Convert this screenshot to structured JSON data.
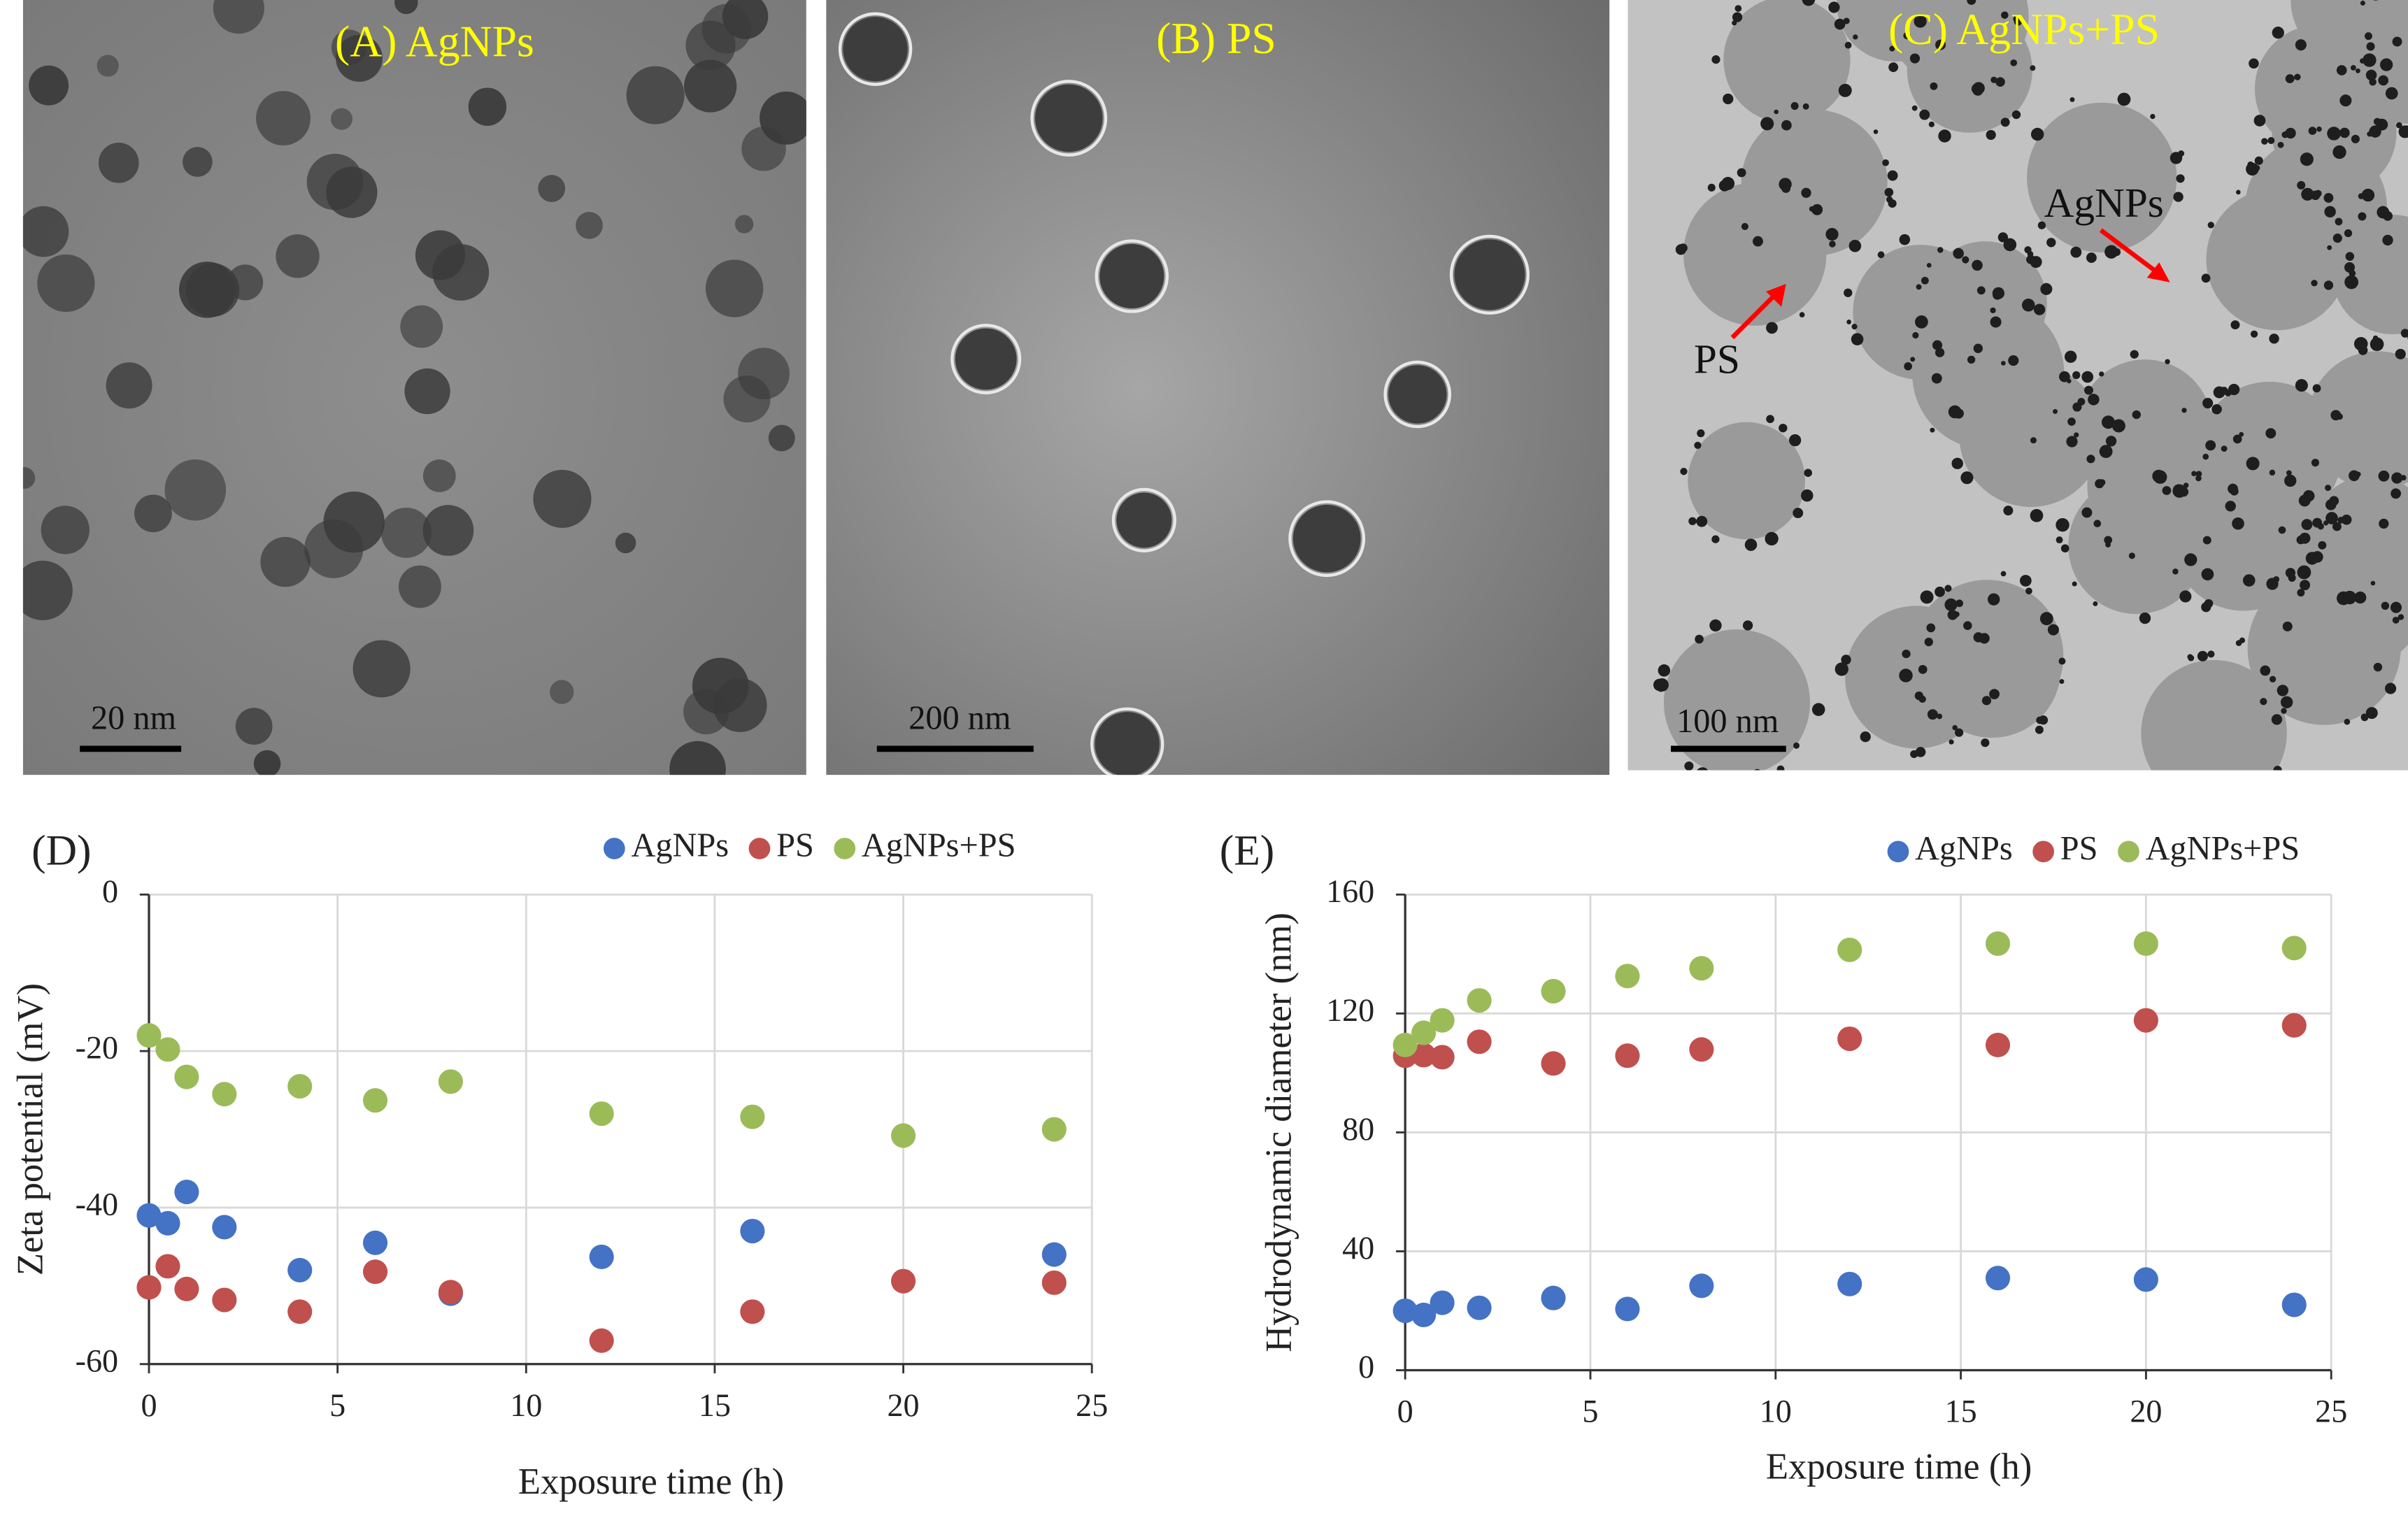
{
  "panels": [
    {
      "label": "(A) AgNPs",
      "scale_bar": "20 nm"
    },
    {
      "label": "(B) PS",
      "scale_bar": "200 nm"
    },
    {
      "label": "(C) AgNPs+PS",
      "scale_bar": "100 nm",
      "annotations": [
        "AgNPs",
        "PS"
      ]
    }
  ],
  "chart_data": [
    {
      "type": "scatter",
      "title": "(D)",
      "xlabel": "Exposure time (h)",
      "ylabel": "Zeta potential (mV)",
      "x": [
        0,
        0.5,
        1,
        2,
        4,
        6,
        8,
        12,
        16,
        20,
        24
      ],
      "series": [
        {
          "name": "AgNPs",
          "color": "#4472c4",
          "values": [
            -41,
            -42,
            -38,
            -42.5,
            -48,
            -44.5,
            -51,
            -46.3,
            -43,
            null,
            -46
          ]
        },
        {
          "name": "PS",
          "color": "#c0504d",
          "values": [
            -50.2,
            -47.5,
            -50.4,
            -51.8,
            -53.3,
            -48.2,
            -50.8,
            -57,
            -53.3,
            -49.4,
            -49.6
          ]
        },
        {
          "name": "AgNPs+PS",
          "color": "#9bbb59",
          "values": [
            -18,
            -19.8,
            -23.3,
            -25.5,
            -24.5,
            -26.3,
            -23.9,
            -28,
            -28.4,
            -30.8,
            -30
          ]
        }
      ],
      "xlim": [
        0,
        25
      ],
      "xticks": [
        0,
        5,
        10,
        15,
        20,
        25
      ],
      "ylim": [
        -60,
        0
      ],
      "yticks": [
        -60,
        -40,
        -20,
        0
      ],
      "grid": true,
      "legend": "top-right"
    },
    {
      "type": "scatter",
      "title": "(E)",
      "xlabel": "Exposure time (h)",
      "ylabel": "Hydrodynamic  diameter (nm)",
      "x": [
        0,
        0.5,
        1,
        2,
        4,
        6,
        8,
        12,
        16,
        20,
        24
      ],
      "series": [
        {
          "name": "AgNPs",
          "color": "#4472c4",
          "values": [
            20,
            18.6,
            22.7,
            21,
            24.3,
            20.6,
            28.4,
            29,
            31,
            30.5,
            22
          ]
        },
        {
          "name": "PS",
          "color": "#c0504d",
          "values": [
            105.8,
            106,
            105.3,
            110.5,
            103.2,
            105.8,
            107.9,
            111.5,
            109.4,
            117.7,
            116
          ]
        },
        {
          "name": "AgNPs+PS",
          "color": "#9bbb59",
          "values": [
            109.4,
            113.5,
            117.7,
            124.4,
            127.5,
            132.6,
            135.2,
            141.4,
            143.5,
            143.5,
            142
          ]
        }
      ],
      "xlim": [
        0,
        25
      ],
      "xticks": [
        0,
        5,
        10,
        15,
        20,
        25
      ],
      "ylim": [
        0,
        160
      ],
      "yticks": [
        0,
        40,
        80,
        120,
        160
      ],
      "grid": true,
      "legend": "top-right"
    }
  ]
}
